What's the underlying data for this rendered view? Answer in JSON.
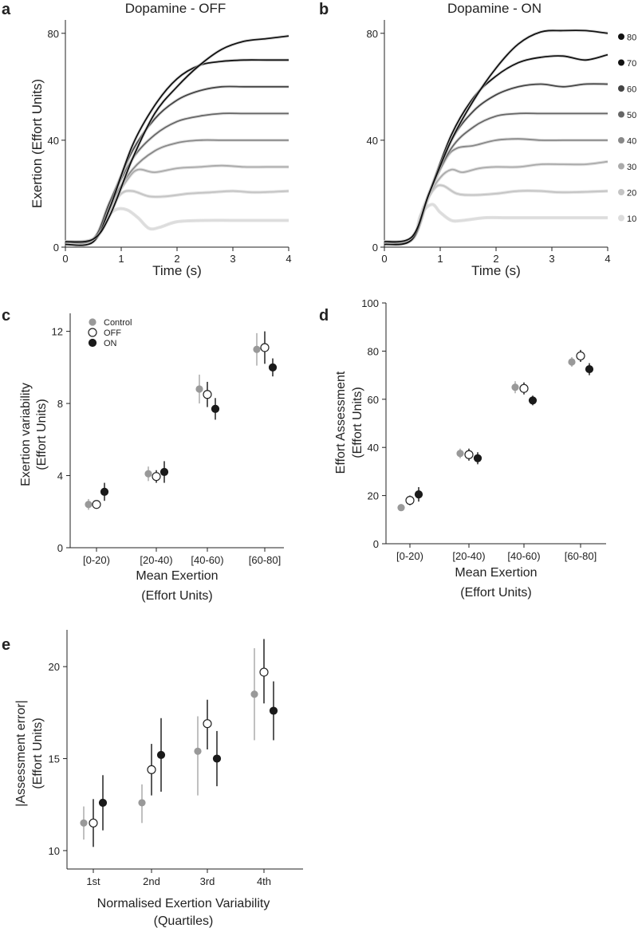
{
  "colors": {
    "axis": "#222222",
    "control": "#999999",
    "off_fill": "#ffffff",
    "off_edge": "#222222",
    "on": "#1a1a1a",
    "band": "#c8c8c8"
  },
  "chart_data": [
    {
      "panel": "a",
      "type": "line",
      "title": "Dopamine - OFF",
      "xlabel": "Time (s)",
      "ylabel": "Exertion (Effort Units)",
      "xlim": [
        0,
        4
      ],
      "ylim": [
        0,
        85
      ],
      "xticks": [
        "0",
        "1",
        "2",
        "3",
        "4"
      ],
      "yticks": [
        "0",
        "40",
        "80"
      ],
      "series": [
        {
          "name": "80",
          "color": "#111111",
          "points": [
            [
              0,
              2
            ],
            [
              0.5,
              3
            ],
            [
              0.8,
              12
            ],
            [
              1.2,
              33
            ],
            [
              1.6,
              50
            ],
            [
              2,
              60
            ],
            [
              2.4,
              68
            ],
            [
              2.8,
              74
            ],
            [
              3.2,
              77
            ],
            [
              3.6,
              78
            ],
            [
              4,
              79
            ]
          ]
        },
        {
          "name": "70",
          "color": "#111111",
          "points": [
            [
              0,
              1
            ],
            [
              0.5,
              2
            ],
            [
              0.8,
              15
            ],
            [
              1.2,
              38
            ],
            [
              1.6,
              53
            ],
            [
              2,
              63
            ],
            [
              2.4,
              68
            ],
            [
              2.8,
              69.5
            ],
            [
              3.2,
              70
            ],
            [
              3.6,
              70
            ],
            [
              4,
              70
            ]
          ]
        },
        {
          "name": "60",
          "color": "#444444",
          "points": [
            [
              0,
              2
            ],
            [
              0.5,
              3
            ],
            [
              0.8,
              17
            ],
            [
              1.2,
              36
            ],
            [
              1.6,
              48
            ],
            [
              2,
              55
            ],
            [
              2.4,
              58.5
            ],
            [
              2.8,
              60
            ],
            [
              3.2,
              60
            ],
            [
              3.6,
              60
            ],
            [
              4,
              60
            ]
          ]
        },
        {
          "name": "50",
          "color": "#666666",
          "points": [
            [
              0,
              2
            ],
            [
              0.5,
              3
            ],
            [
              0.8,
              17
            ],
            [
              1.2,
              33
            ],
            [
              1.6,
              42
            ],
            [
              2,
              47
            ],
            [
              2.4,
              49
            ],
            [
              2.8,
              50
            ],
            [
              3.2,
              50
            ],
            [
              3.6,
              50
            ],
            [
              4,
              50
            ]
          ]
        },
        {
          "name": "40",
          "color": "#888888",
          "points": [
            [
              0,
              2
            ],
            [
              0.5,
              3
            ],
            [
              0.8,
              16
            ],
            [
              1.2,
              29
            ],
            [
              1.6,
              36
            ],
            [
              2,
              39
            ],
            [
              2.4,
              40
            ],
            [
              2.8,
              40
            ],
            [
              3.2,
              40
            ],
            [
              3.6,
              40
            ],
            [
              4,
              40
            ]
          ]
        },
        {
          "name": "30",
          "color": "#aaaaaa",
          "points": [
            [
              0,
              2
            ],
            [
              0.5,
              3
            ],
            [
              0.8,
              15
            ],
            [
              1.1,
              25
            ],
            [
              1.3,
              29
            ],
            [
              1.6,
              28
            ],
            [
              2,
              29.5
            ],
            [
              2.4,
              30
            ],
            [
              2.8,
              30.5
            ],
            [
              3.2,
              30
            ],
            [
              3.6,
              30
            ],
            [
              4,
              30
            ]
          ]
        },
        {
          "name": "20",
          "color": "#c4c4c4",
          "points": [
            [
              0,
              2
            ],
            [
              0.5,
              3
            ],
            [
              0.8,
              14
            ],
            [
              1,
              20
            ],
            [
              1.2,
              21
            ],
            [
              1.5,
              19
            ],
            [
              1.8,
              19
            ],
            [
              2.2,
              20
            ],
            [
              2.6,
              20.5
            ],
            [
              3,
              21
            ],
            [
              3.4,
              20.5
            ],
            [
              4,
              21
            ]
          ]
        },
        {
          "name": "10",
          "color": "#dcdcdc",
          "points": [
            [
              0,
              2
            ],
            [
              0.5,
              3
            ],
            [
              0.7,
              10
            ],
            [
              0.9,
              14
            ],
            [
              1.1,
              14
            ],
            [
              1.3,
              11
            ],
            [
              1.5,
              7
            ],
            [
              1.7,
              7.5
            ],
            [
              2,
              9.5
            ],
            [
              2.5,
              10
            ],
            [
              3,
              10
            ],
            [
              3.5,
              10
            ],
            [
              4,
              10
            ]
          ]
        }
      ]
    },
    {
      "panel": "b",
      "type": "line",
      "title": "Dopamine - ON",
      "xlabel": "Time (s)",
      "ylabel": "",
      "xlim": [
        0,
        4
      ],
      "ylim": [
        0,
        85
      ],
      "xticks": [
        "0",
        "1",
        "2",
        "3",
        "4"
      ],
      "yticks": [
        "0",
        "40",
        "80"
      ],
      "series": [
        {
          "name": "80",
          "color": "#111111",
          "points": [
            [
              0,
              2
            ],
            [
              0.5,
              4
            ],
            [
              0.8,
              20
            ],
            [
              1.2,
              40
            ],
            [
              1.6,
              55
            ],
            [
              2,
              67
            ],
            [
              2.4,
              76
            ],
            [
              2.8,
              80.5
            ],
            [
              3.2,
              81
            ],
            [
              3.6,
              81
            ],
            [
              4,
              80
            ]
          ]
        },
        {
          "name": "70",
          "color": "#111111",
          "points": [
            [
              0,
              1
            ],
            [
              0.5,
              3
            ],
            [
              0.8,
              20
            ],
            [
              1.2,
              42
            ],
            [
              1.6,
              56
            ],
            [
              2,
              64
            ],
            [
              2.4,
              69
            ],
            [
              2.8,
              71
            ],
            [
              3.2,
              71.5
            ],
            [
              3.6,
              70
            ],
            [
              4,
              72
            ]
          ]
        },
        {
          "name": "60",
          "color": "#444444",
          "points": [
            [
              0,
              2
            ],
            [
              0.5,
              3
            ],
            [
              0.8,
              20
            ],
            [
              1.2,
              40
            ],
            [
              1.6,
              51
            ],
            [
              2,
              57
            ],
            [
              2.4,
              60
            ],
            [
              2.8,
              61
            ],
            [
              3.2,
              60
            ],
            [
              3.6,
              61
            ],
            [
              4,
              61
            ]
          ]
        },
        {
          "name": "50",
          "color": "#666666",
          "points": [
            [
              0,
              2
            ],
            [
              0.5,
              3
            ],
            [
              0.8,
              20
            ],
            [
              1.2,
              37
            ],
            [
              1.6,
              45
            ],
            [
              2,
              49
            ],
            [
              2.4,
              50
            ],
            [
              2.8,
              50
            ],
            [
              3.2,
              50
            ],
            [
              3.6,
              50
            ],
            [
              4,
              50
            ]
          ]
        },
        {
          "name": "40",
          "color": "#888888",
          "points": [
            [
              0,
              2
            ],
            [
              0.5,
              3
            ],
            [
              0.8,
              20
            ],
            [
              1.1,
              33
            ],
            [
              1.3,
              37
            ],
            [
              1.6,
              38
            ],
            [
              2,
              40
            ],
            [
              2.4,
              40.5
            ],
            [
              2.8,
              40
            ],
            [
              3.2,
              40
            ],
            [
              3.6,
              40
            ],
            [
              4,
              40
            ]
          ]
        },
        {
          "name": "30",
          "color": "#aaaaaa",
          "points": [
            [
              0,
              2
            ],
            [
              0.5,
              3
            ],
            [
              0.8,
              19
            ],
            [
              1,
              26
            ],
            [
              1.2,
              29
            ],
            [
              1.4,
              28
            ],
            [
              1.7,
              29.5
            ],
            [
              2,
              30
            ],
            [
              2.4,
              30
            ],
            [
              2.8,
              31
            ],
            [
              3.2,
              31
            ],
            [
              3.6,
              31
            ],
            [
              4,
              32
            ]
          ]
        },
        {
          "name": "20",
          "color": "#c4c4c4",
          "points": [
            [
              0,
              2
            ],
            [
              0.5,
              3
            ],
            [
              0.7,
              15
            ],
            [
              0.9,
              22
            ],
            [
              1.05,
              23
            ],
            [
              1.3,
              20
            ],
            [
              1.6,
              19.5
            ],
            [
              2,
              20
            ],
            [
              2.4,
              21
            ],
            [
              2.8,
              21
            ],
            [
              3.2,
              20.5
            ],
            [
              4,
              21
            ]
          ]
        },
        {
          "name": "10",
          "color": "#dcdcdc",
          "points": [
            [
              0,
              2
            ],
            [
              0.5,
              3
            ],
            [
              0.65,
              12
            ],
            [
              0.85,
              16
            ],
            [
              1,
              13
            ],
            [
              1.2,
              10
            ],
            [
              1.4,
              10
            ],
            [
              1.8,
              11
            ],
            [
              2.2,
              11
            ],
            [
              2.8,
              11
            ],
            [
              3.4,
              11
            ],
            [
              4,
              11
            ]
          ]
        }
      ],
      "legend": [
        "80",
        "70",
        "60",
        "50",
        "40",
        "30",
        "20",
        "10"
      ]
    },
    {
      "panel": "c",
      "type": "scatter",
      "xlabel": "Mean Exertion",
      "xlabel2": "(Effort Units)",
      "ylabel": "Exertion variability",
      "ylabel2": "(Effort Units)",
      "categories": [
        "[0-20)",
        "[20-40)",
        "[40-60)",
        "[60-80]"
      ],
      "ylim": [
        0,
        13
      ],
      "yticks": [
        "0",
        "4",
        "8",
        "12"
      ],
      "legend": [
        "Control",
        "OFF",
        "ON"
      ],
      "series": [
        {
          "name": "Control",
          "values": [
            2.4,
            4.1,
            8.8,
            11.0
          ],
          "lo": [
            2.1,
            3.7,
            8.0,
            10.1
          ],
          "hi": [
            2.7,
            4.5,
            9.6,
            11.9
          ]
        },
        {
          "name": "OFF",
          "values": [
            2.4,
            3.95,
            8.5,
            11.1
          ],
          "lo": [
            2.2,
            3.6,
            7.8,
            10.2
          ],
          "hi": [
            2.6,
            4.3,
            9.2,
            12.0
          ]
        },
        {
          "name": "ON",
          "values": [
            3.1,
            4.2,
            7.7,
            10.0
          ],
          "lo": [
            2.6,
            3.6,
            7.1,
            9.5
          ],
          "hi": [
            3.6,
            4.8,
            8.3,
            10.5
          ]
        }
      ]
    },
    {
      "panel": "d",
      "type": "scatter",
      "xlabel": "Mean Exertion",
      "xlabel2": "(Effort Units)",
      "ylabel": "Effort Assessment",
      "ylabel2": "(Effort Units)",
      "categories": [
        "[0-20)",
        "[20-40)",
        "[40-60)",
        "[60-80]"
      ],
      "ylim": [
        0,
        100
      ],
      "yticks": [
        "0",
        "20",
        "40",
        "60",
        "80",
        "100"
      ],
      "series": [
        {
          "name": "Control",
          "values": [
            15.0,
            37.5,
            65.0,
            75.5
          ],
          "lo": [
            14.0,
            35.5,
            62.5,
            73.5
          ],
          "hi": [
            16.0,
            39.5,
            67.5,
            77.5
          ]
        },
        {
          "name": "OFF",
          "values": [
            18.0,
            37.0,
            64.5,
            78.0
          ],
          "lo": [
            16.0,
            34.5,
            62.0,
            75.5
          ],
          "hi": [
            20.0,
            39.5,
            67.0,
            80.5
          ]
        },
        {
          "name": "ON",
          "values": [
            20.5,
            35.5,
            59.5,
            72.5
          ],
          "lo": [
            17.5,
            33.0,
            57.5,
            70.0
          ],
          "hi": [
            23.5,
            38.0,
            61.5,
            75.0
          ]
        }
      ]
    },
    {
      "panel": "e",
      "type": "scatter",
      "xlabel": "Normalised Exertion Variability",
      "xlabel2": "(Quartiles)",
      "ylabel": "|Assessment error|",
      "ylabel2": "(Effort Units)",
      "categories": [
        "1st",
        "2nd",
        "3rd",
        "4th"
      ],
      "ylim": [
        9,
        22
      ],
      "yticks": [
        "10",
        "15",
        "20"
      ],
      "series": [
        {
          "name": "Control",
          "values": [
            11.5,
            12.6,
            15.4,
            18.5
          ],
          "lo": [
            10.6,
            11.5,
            13.0,
            16.0
          ],
          "hi": [
            12.4,
            13.6,
            17.3,
            21.0
          ]
        },
        {
          "name": "OFF",
          "values": [
            11.5,
            14.4,
            16.9,
            19.7
          ],
          "lo": [
            10.2,
            13.0,
            15.5,
            18.0
          ],
          "hi": [
            12.8,
            15.8,
            18.2,
            21.5
          ]
        },
        {
          "name": "ON",
          "values": [
            12.6,
            15.2,
            15.0,
            17.6
          ],
          "lo": [
            11.1,
            13.2,
            13.5,
            16.0
          ],
          "hi": [
            14.1,
            17.2,
            16.5,
            19.2
          ]
        }
      ]
    }
  ]
}
